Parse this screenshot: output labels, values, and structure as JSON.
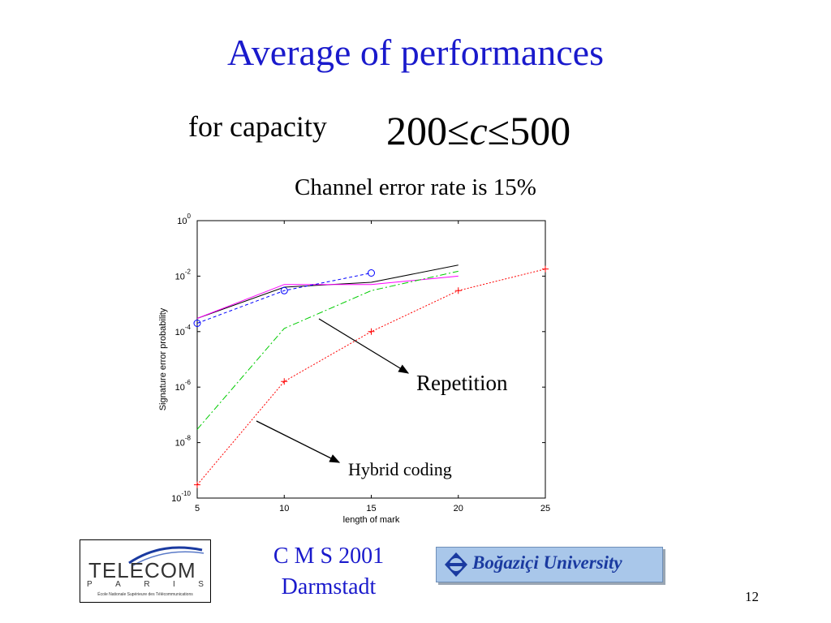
{
  "slide": {
    "title": "Average of performances",
    "subtitle": "for capacity",
    "formula": {
      "left": "200",
      "op1": "≤",
      "var": "c",
      "op2": "≤",
      "right": "500"
    },
    "channel_rate": "Channel error rate is 15%",
    "footer": {
      "line1": "C M S 2001",
      "line2": "Darmstadt"
    },
    "page_number": "12"
  },
  "logos": {
    "telecom": {
      "word": "TELECOM",
      "city_letters": [
        "P",
        "A",
        "R",
        "I",
        "S"
      ],
      "subtitle": "École Nationale Supérieure des Télécommunications"
    },
    "bogazici": {
      "name": "Boğaziçi University"
    }
  },
  "chart_data": {
    "type": "line",
    "xlabel": "length of mark",
    "ylabel": "Signature error probability",
    "xlim": [
      5,
      25
    ],
    "ylim_log10": [
      -10,
      0
    ],
    "y_scale": "log",
    "x_ticks": [
      "5",
      "10",
      "15",
      "20",
      "25"
    ],
    "y_tick_exponents": [
      "0",
      "-2",
      "-4",
      "-6",
      "-8",
      "-10"
    ],
    "y_tick_base": "10",
    "series": [
      {
        "color": "#000000",
        "dash": "solid",
        "marker": "none",
        "x": [
          5,
          10,
          15,
          20
        ],
        "y": [
          0.0003,
          0.004,
          0.006,
          0.025
        ]
      },
      {
        "color": "#ff00ff",
        "dash": "solid",
        "marker": "none",
        "x": [
          5,
          10,
          15,
          20
        ],
        "y": [
          0.0003,
          0.005,
          0.005,
          0.01
        ]
      },
      {
        "color": "#0000ff",
        "dash": "dashed",
        "marker": "circle",
        "x": [
          5,
          10,
          15
        ],
        "y": [
          0.0002,
          0.003,
          0.013
        ]
      },
      {
        "color": "#00cc00",
        "dash": "dashdot",
        "marker": "none",
        "x": [
          5,
          10,
          15,
          20
        ],
        "y": [
          3e-08,
          0.00013,
          0.003,
          0.015
        ]
      },
      {
        "color": "#ff0000",
        "dash": "dotted",
        "marker": "plus",
        "x": [
          5,
          10,
          15,
          20,
          25
        ],
        "y": [
          3e-10,
          1.6e-06,
          0.0001,
          0.003,
          0.018
        ]
      }
    ],
    "annotations": [
      {
        "text": "Repetition"
      },
      {
        "text": "Hybrid coding"
      }
    ]
  }
}
